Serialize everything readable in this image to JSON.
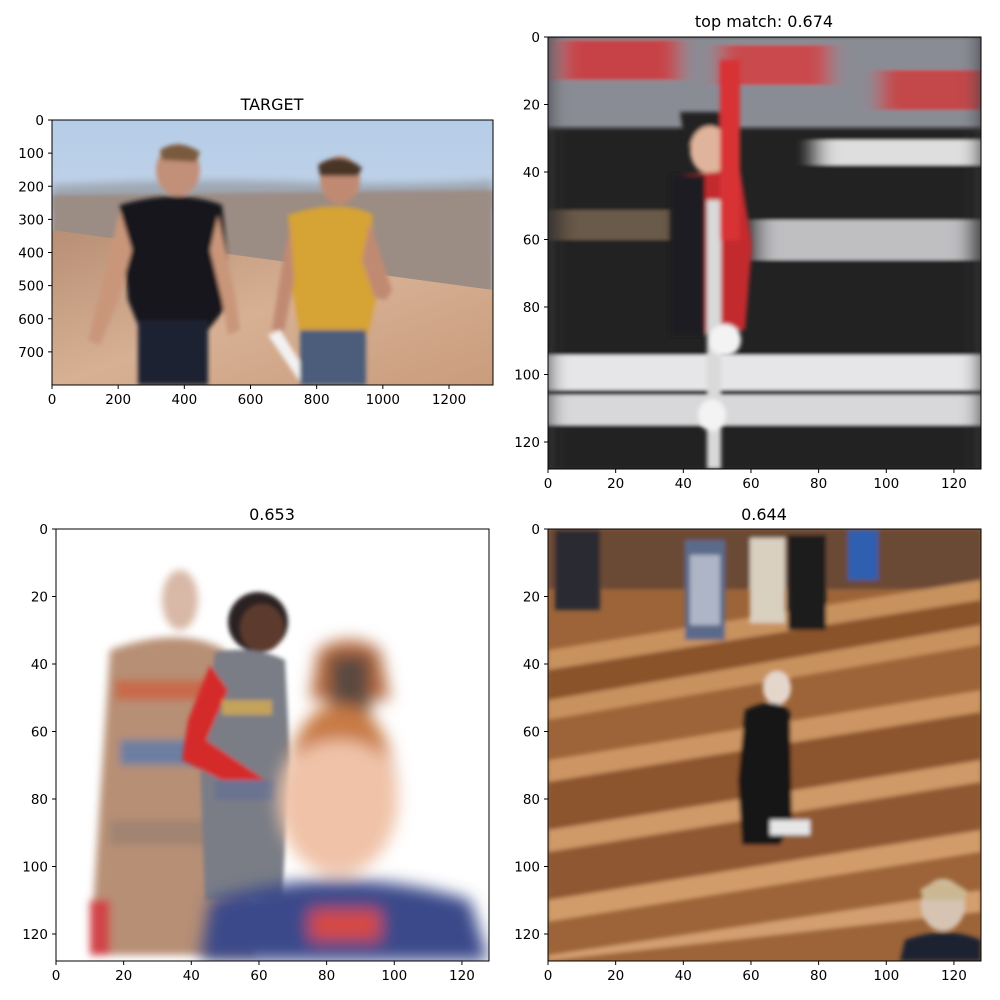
{
  "figure": {
    "panels": [
      {
        "title": "TARGET",
        "description_icon": "photo-two-men-walking-desert",
        "xticks": [
          "0",
          "200",
          "400",
          "600",
          "800",
          "1000",
          "1200"
        ],
        "xtick_values": [
          0,
          200,
          400,
          600,
          800,
          1000,
          1200
        ],
        "yticks": [
          "0",
          "100",
          "200",
          "300",
          "400",
          "500",
          "600",
          "700"
        ],
        "ytick_values": [
          0,
          100,
          200,
          300,
          400,
          500,
          600,
          700
        ],
        "xlim": [
          0,
          1333
        ],
        "ylim": [
          800,
          0
        ]
      },
      {
        "title": "top match: 0.674",
        "description_icon": "photo-military-parade",
        "xticks": [
          "0",
          "20",
          "40",
          "60",
          "80",
          "100",
          "120"
        ],
        "xtick_values": [
          0,
          20,
          40,
          60,
          80,
          100,
          120
        ],
        "yticks": [
          "0",
          "20",
          "40",
          "60",
          "80",
          "100",
          "120"
        ],
        "ytick_values": [
          0,
          20,
          40,
          60,
          80,
          100,
          120
        ],
        "xlim": [
          0,
          128
        ],
        "ylim": [
          128,
          0
        ]
      },
      {
        "title": "0.653",
        "description_icon": "photo-fashion-runway",
        "xticks": [
          "0",
          "20",
          "40",
          "60",
          "80",
          "100",
          "120"
        ],
        "xtick_values": [
          0,
          20,
          40,
          60,
          80,
          100,
          120
        ],
        "yticks": [
          "0",
          "20",
          "40",
          "60",
          "80",
          "100",
          "120"
        ],
        "ytick_values": [
          0,
          20,
          40,
          60,
          80,
          100,
          120
        ],
        "xlim": [
          0,
          128
        ],
        "ylim": [
          128,
          0
        ]
      },
      {
        "title": "0.644",
        "description_icon": "photo-church-pews",
        "xticks": [
          "0",
          "20",
          "40",
          "60",
          "80",
          "100",
          "120"
        ],
        "xtick_values": [
          0,
          20,
          40,
          60,
          80,
          100,
          120
        ],
        "yticks": [
          "0",
          "20",
          "40",
          "60",
          "80",
          "100",
          "120"
        ],
        "ytick_values": [
          0,
          20,
          40,
          60,
          80,
          100,
          120
        ],
        "xlim": [
          0,
          128
        ],
        "ylim": [
          128,
          0
        ]
      }
    ]
  },
  "colors": {
    "sky": "#b9cfe6",
    "sand": "#c9a587",
    "wall": "#9a8a80",
    "black_shirt": "#15151c",
    "yellow_shirt": "#d7a53a",
    "jeans": "#4b5d7a",
    "uniform_black": "#1c1c20",
    "uniform_red": "#c32a2e",
    "pew_wood": "#a86e45",
    "white": "#ffffff"
  }
}
